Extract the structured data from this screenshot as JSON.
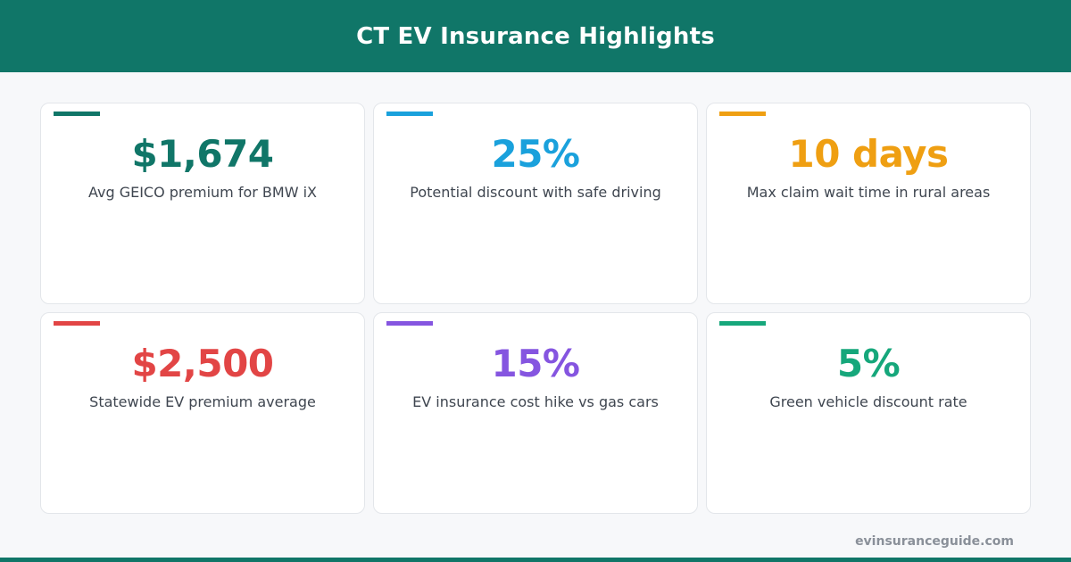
{
  "header": {
    "title": "CT EV Insurance Highlights",
    "background": "#107668"
  },
  "cards": [
    {
      "value": "$1,674",
      "label": "Avg GEICO premium for BMW iX",
      "color": "#107668"
    },
    {
      "value": "25%",
      "label": "Potential discount with safe driving",
      "color": "#1aa1dc"
    },
    {
      "value": "10 days",
      "label": "Max claim wait time in rural areas",
      "color": "#ef9f12"
    },
    {
      "value": "$2,500",
      "label": "Statewide EV premium average",
      "color": "#e24545"
    },
    {
      "value": "15%",
      "label": "EV insurance cost hike vs gas cars",
      "color": "#8555e0"
    },
    {
      "value": "5%",
      "label": "Green vehicle discount rate",
      "color": "#16a77b"
    }
  ],
  "footer": {
    "site": "evinsuranceguide.com",
    "bar_color": "#107668"
  }
}
